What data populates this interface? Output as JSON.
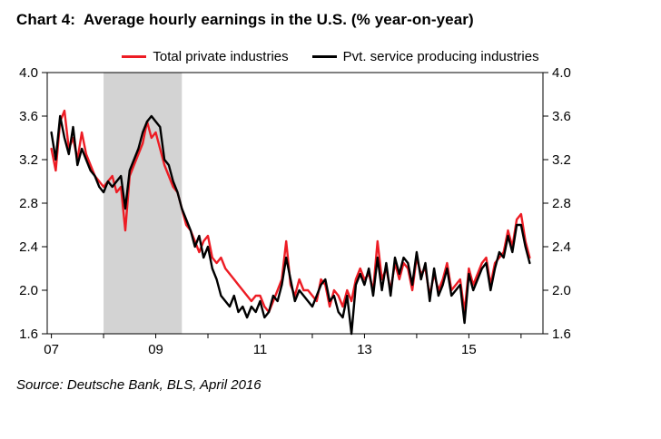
{
  "title": "Chart 4:  Average hourly earnings in the U.S. (% year-on-year)",
  "source": "Source: Deutsche Bank, BLS, April 2016",
  "colors": {
    "series_red": "#ed1c24",
    "series_black": "#000000",
    "recession_band": "#d3d3d3",
    "axis": "#000000",
    "background": "#ffffff"
  },
  "chart_data": {
    "type": "line",
    "title": "Chart 4:  Average hourly earnings in the U.S. (% year-on-year)",
    "xlabel": "",
    "ylabel": "",
    "ylim": [
      1.6,
      4.0
    ],
    "y_ticks": [
      4.0,
      3.6,
      3.2,
      2.8,
      2.4,
      2.0,
      1.6
    ],
    "y_axis_sides": [
      "left",
      "right"
    ],
    "x_range": [
      2006.92,
      2016.42
    ],
    "x_tick_years": [
      2007,
      2008,
      2009,
      2010,
      2011,
      2012,
      2013,
      2014,
      2015,
      2016
    ],
    "x_tick_labels": [
      "07",
      "",
      "09",
      "",
      "11",
      "",
      "13",
      "",
      "15",
      ""
    ],
    "grid": false,
    "legend_position": "top",
    "recession_band": {
      "from": 2008.0,
      "to": 2009.5,
      "color": "#d3d3d3"
    },
    "x_start_year": 2007.0,
    "x_step": 0.0833333,
    "series": [
      {
        "name": "Total private industries",
        "color": "#ed1c24",
        "values": [
          3.3,
          3.1,
          3.55,
          3.65,
          3.3,
          3.4,
          3.2,
          3.45,
          3.25,
          3.15,
          3.05,
          3.0,
          2.95,
          3.0,
          3.05,
          2.9,
          2.95,
          2.55,
          3.05,
          3.15,
          3.25,
          3.35,
          3.55,
          3.4,
          3.45,
          3.3,
          3.15,
          3.05,
          2.95,
          2.9,
          2.75,
          2.6,
          2.55,
          2.45,
          2.35,
          2.45,
          2.5,
          2.3,
          2.25,
          2.3,
          2.2,
          2.15,
          2.1,
          2.05,
          2.0,
          1.95,
          1.9,
          1.95,
          1.95,
          1.85,
          1.8,
          1.9,
          2.0,
          2.1,
          2.45,
          2.05,
          1.95,
          2.1,
          2.0,
          2.0,
          1.95,
          1.9,
          2.1,
          2.05,
          1.85,
          2.0,
          1.95,
          1.85,
          2.0,
          1.9,
          2.1,
          2.2,
          2.1,
          2.15,
          2.0,
          2.45,
          2.1,
          2.2,
          2.0,
          2.25,
          2.1,
          2.25,
          2.2,
          2.0,
          2.3,
          2.15,
          2.2,
          1.95,
          2.15,
          2.0,
          2.1,
          2.25,
          2.0,
          2.05,
          2.1,
          1.8,
          2.2,
          2.05,
          2.15,
          2.25,
          2.3,
          2.05,
          2.25,
          2.3,
          2.35,
          2.55,
          2.4,
          2.65,
          2.7,
          2.45,
          2.3
        ]
      },
      {
        "name": "Pvt. service producing industries",
        "color": "#000000",
        "values": [
          3.45,
          3.2,
          3.6,
          3.4,
          3.25,
          3.5,
          3.15,
          3.3,
          3.2,
          3.1,
          3.05,
          2.95,
          2.9,
          3.0,
          2.95,
          3.0,
          3.05,
          2.75,
          3.1,
          3.2,
          3.3,
          3.45,
          3.55,
          3.6,
          3.55,
          3.5,
          3.2,
          3.15,
          3.0,
          2.9,
          2.75,
          2.65,
          2.55,
          2.4,
          2.5,
          2.3,
          2.4,
          2.2,
          2.1,
          1.95,
          1.9,
          1.85,
          1.95,
          1.8,
          1.85,
          1.75,
          1.85,
          1.8,
          1.9,
          1.75,
          1.8,
          1.95,
          1.9,
          2.05,
          2.3,
          2.1,
          1.9,
          2.0,
          1.95,
          1.9,
          1.85,
          1.95,
          2.05,
          2.1,
          1.9,
          1.95,
          1.8,
          1.75,
          1.95,
          1.6,
          2.05,
          2.15,
          2.05,
          2.2,
          1.95,
          2.3,
          2.0,
          2.25,
          1.95,
          2.3,
          2.15,
          2.3,
          2.25,
          2.05,
          2.35,
          2.1,
          2.25,
          1.9,
          2.2,
          1.95,
          2.05,
          2.2,
          1.95,
          2.0,
          2.05,
          1.7,
          2.15,
          2.0,
          2.1,
          2.2,
          2.25,
          2.0,
          2.2,
          2.35,
          2.3,
          2.5,
          2.35,
          2.6,
          2.6,
          2.4,
          2.25
        ]
      }
    ]
  }
}
